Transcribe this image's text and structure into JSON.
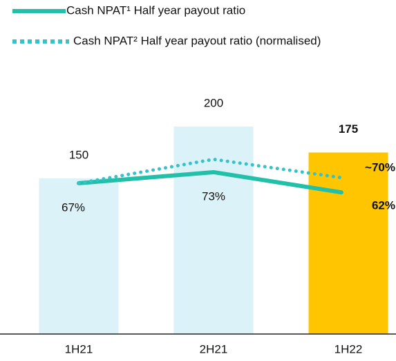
{
  "chart_data": {
    "type": "bar",
    "categories": [
      "1H21",
      "2H21",
      "1H22"
    ],
    "values": [
      150,
      200,
      175
    ],
    "colors": [
      "#dcf2f9",
      "#dcf2f9",
      "#ffc600"
    ],
    "ylim": [
      0,
      250
    ],
    "y2lim": [
      -15,
      126
    ],
    "series": [
      {
        "type": "line",
        "axis": "y2",
        "name": "Cash NPAT¹ Half year payout ratio",
        "color": "#22bfa9",
        "style": "solid",
        "values": [
          67,
          73,
          62
        ],
        "value_labels": [
          "67%",
          "73%",
          "62%"
        ]
      },
      {
        "type": "line",
        "axis": "y2",
        "name": "Cash NPAT² Half year payout ratio (normalised)",
        "color": "#35c3c9",
        "style": "dotted",
        "values": [
          67,
          80,
          70
        ],
        "value_labels": [
          null,
          null,
          "~70%"
        ]
      }
    ]
  }
}
